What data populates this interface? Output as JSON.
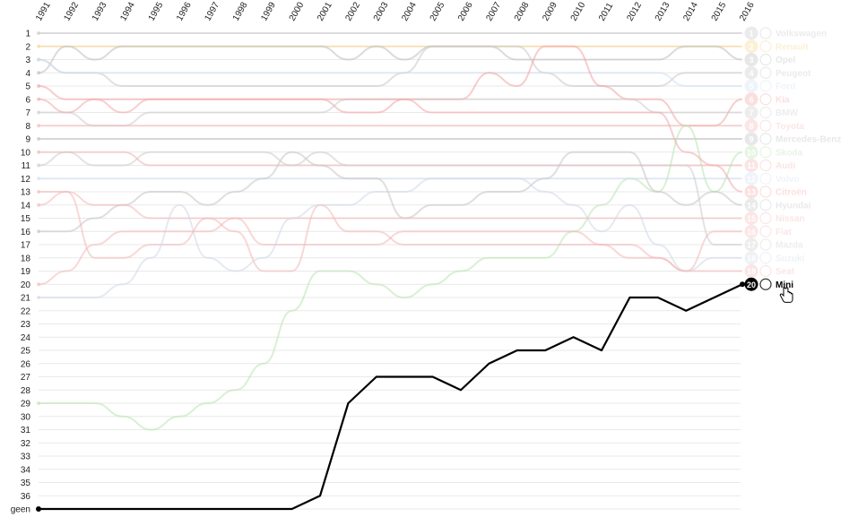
{
  "chart_data": {
    "type": "line",
    "title": "",
    "xlabel": "",
    "ylabel": "",
    "x": [
      1991,
      1992,
      1993,
      1994,
      1995,
      1996,
      1997,
      1998,
      1999,
      2000,
      2001,
      2002,
      2003,
      2004,
      2005,
      2006,
      2007,
      2008,
      2009,
      2010,
      2011,
      2012,
      2013,
      2014,
      2015,
      2016
    ],
    "x_labels": [
      "1991",
      "1992",
      "1993",
      "1994",
      "1995",
      "1996",
      "1997",
      "1998",
      "1999",
      "2000",
      "2001",
      "2002",
      "2003",
      "2004",
      "2005",
      "2006",
      "2007",
      "2008",
      "2009",
      "2010",
      "2011",
      "2012",
      "2013",
      "2014",
      "2015",
      "2016"
    ],
    "y_labels": [
      "1",
      "2",
      "3",
      "4",
      "5",
      "6",
      "7",
      "8",
      "9",
      "10",
      "11",
      "12",
      "13",
      "14",
      "15",
      "16",
      "17",
      "18",
      "19",
      "20",
      "21",
      "22",
      "23",
      "24",
      "25",
      "26",
      "27",
      "28",
      "29",
      "30",
      "31",
      "32",
      "33",
      "34",
      "35",
      "36",
      "geen"
    ],
    "y_axis_note": "rank scale, 1 at top; 'geen' means not ranked",
    "highlighted_series": "Mini",
    "series": [
      {
        "name": "Volkswagen",
        "color": "#c8c8c8",
        "values": [
          1,
          1,
          1,
          1,
          1,
          1,
          1,
          1,
          1,
          1,
          1,
          1,
          1,
          1,
          1,
          1,
          1,
          1,
          1,
          1,
          1,
          1,
          1,
          1,
          1,
          1
        ]
      },
      {
        "name": "Renault",
        "color": "#f7d68a",
        "values": [
          2,
          2,
          2,
          2,
          2,
          2,
          2,
          2,
          2,
          2,
          2,
          2,
          2,
          2,
          2,
          2,
          2,
          2,
          2,
          2,
          2,
          2,
          2,
          2,
          2,
          2
        ]
      },
      {
        "name": "Opel",
        "color": "#bdbdbd",
        "values": [
          4,
          2,
          3,
          2,
          2,
          2,
          2,
          2,
          2,
          2,
          2,
          3,
          2,
          3,
          2,
          2,
          2,
          3,
          3,
          3,
          3,
          3,
          3,
          2,
          2,
          3
        ]
      },
      {
        "name": "Peugeot",
        "color": "#c8c8c8",
        "values": [
          3,
          4,
          4,
          5,
          5,
          5,
          5,
          5,
          5,
          5,
          5,
          5,
          5,
          4,
          2,
          2,
          2,
          2,
          4,
          5,
          5,
          5,
          5,
          4,
          4,
          4
        ]
      },
      {
        "name": "Ford",
        "color": "#cfe0f2",
        "values": [
          3,
          4,
          4,
          4,
          4,
          4,
          4,
          4,
          4,
          4,
          4,
          4,
          4,
          4,
          4,
          4,
          4,
          4,
          4,
          4,
          4,
          4,
          4,
          5,
          5,
          5
        ]
      },
      {
        "name": "Kia",
        "color": "#f4a3a3",
        "values": [
          5,
          6,
          6,
          6,
          6,
          6,
          6,
          6,
          6,
          6,
          6,
          7,
          7,
          6,
          6,
          6,
          4,
          5,
          2,
          2,
          5,
          6,
          6,
          8,
          8,
          6
        ]
      },
      {
        "name": "BMW",
        "color": "#cccccc",
        "values": [
          7,
          7,
          8,
          8,
          7,
          7,
          7,
          7,
          7,
          7,
          7,
          6,
          6,
          6,
          6,
          6,
          6,
          6,
          6,
          6,
          6,
          6,
          7,
          7,
          7,
          7
        ]
      },
      {
        "name": "Toyota",
        "color": "#f4b8b8",
        "values": [
          8,
          8,
          8,
          8,
          8,
          8,
          8,
          8,
          8,
          8,
          8,
          8,
          8,
          8,
          8,
          8,
          8,
          8,
          8,
          8,
          8,
          8,
          8,
          8,
          8,
          8
        ]
      },
      {
        "name": "Mercedes-Benz",
        "color": "#c0c0c0",
        "values": [
          9,
          9,
          9,
          9,
          9,
          9,
          9,
          9,
          9,
          9,
          9,
          9,
          9,
          9,
          9,
          9,
          9,
          9,
          9,
          9,
          9,
          9,
          9,
          9,
          9,
          9
        ]
      },
      {
        "name": "Skoda",
        "color": "#b9e3b0",
        "values": [
          29,
          29,
          29,
          30,
          31,
          30,
          29,
          28,
          26,
          22,
          19,
          19,
          20,
          21,
          20,
          19,
          18,
          18,
          18,
          16,
          14,
          12,
          13,
          8,
          13,
          10
        ]
      },
      {
        "name": "Audi",
        "color": "#f4b3b3",
        "values": [
          10,
          10,
          10,
          10,
          11,
          11,
          11,
          11,
          11,
          11,
          11,
          11,
          11,
          11,
          11,
          11,
          11,
          11,
          11,
          11,
          11,
          11,
          11,
          11,
          11,
          11
        ]
      },
      {
        "name": "Volvo",
        "color": "#cfe0f2",
        "values": [
          12,
          12,
          12,
          12,
          12,
          12,
          12,
          12,
          12,
          12,
          12,
          12,
          12,
          12,
          12,
          12,
          12,
          12,
          12,
          12,
          12,
          12,
          12,
          12,
          12,
          12
        ]
      },
      {
        "name": "Citroën",
        "color": "#f4a8a8",
        "values": [
          6,
          7,
          6,
          7,
          6,
          6,
          6,
          6,
          6,
          6,
          6,
          6,
          6,
          6,
          7,
          7,
          7,
          7,
          7,
          7,
          7,
          7,
          7,
          10,
          11,
          13
        ]
      },
      {
        "name": "Hyundai",
        "color": "#c4c4c4",
        "values": [
          16,
          16,
          15,
          14,
          13,
          13,
          14,
          13,
          12,
          10,
          11,
          12,
          12,
          15,
          14,
          14,
          13,
          13,
          12,
          10,
          10,
          10,
          13,
          14,
          13,
          14
        ]
      },
      {
        "name": "Nissan",
        "color": "#f4b8b8",
        "values": [
          14,
          13,
          14,
          14,
          15,
          15,
          15,
          15,
          15,
          15,
          15,
          15,
          15,
          15,
          15,
          15,
          15,
          15,
          15,
          15,
          15,
          15,
          15,
          15,
          15,
          15
        ]
      },
      {
        "name": "Fiat",
        "color": "#f4b8b8",
        "values": [
          13,
          13,
          18,
          18,
          17,
          17,
          15,
          16,
          19,
          19,
          14,
          16,
          16,
          17,
          17,
          17,
          17,
          17,
          17,
          17,
          17,
          17,
          18,
          19,
          16,
          16
        ]
      },
      {
        "name": "Mazda",
        "color": "#cccccc",
        "values": [
          11,
          10,
          11,
          11,
          10,
          10,
          10,
          10,
          10,
          11,
          10,
          11,
          11,
          11,
          11,
          11,
          11,
          11,
          11,
          11,
          11,
          11,
          11,
          11,
          17,
          17
        ]
      },
      {
        "name": "Suzuki",
        "color": "#cfd8e6",
        "values": [
          21,
          21,
          21,
          20,
          18,
          14,
          18,
          19,
          18,
          15,
          14,
          14,
          13,
          13,
          12,
          12,
          12,
          12,
          13,
          14,
          16,
          14,
          17,
          19,
          18,
          18
        ]
      },
      {
        "name": "Seat",
        "color": "#f4b8b8",
        "values": [
          20,
          19,
          17,
          16,
          16,
          16,
          16,
          15,
          17,
          17,
          17,
          17,
          17,
          16,
          16,
          16,
          16,
          16,
          16,
          16,
          17,
          18,
          18,
          19,
          19,
          19
        ]
      },
      {
        "name": "Mini",
        "color": "#111111",
        "values": [
          37,
          37,
          37,
          37,
          37,
          37,
          37,
          37,
          37,
          37,
          36,
          29,
          27,
          27,
          27,
          28,
          26,
          25,
          25,
          24,
          25,
          21,
          21,
          22,
          21,
          20
        ]
      }
    ]
  }
}
